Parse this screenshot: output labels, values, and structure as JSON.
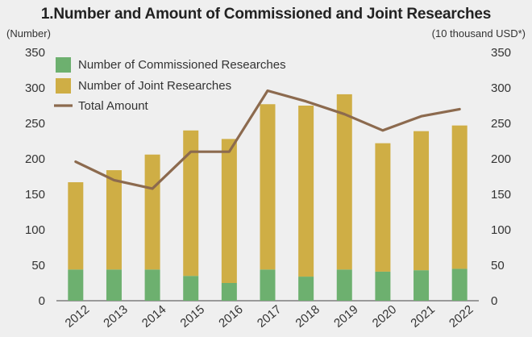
{
  "chart_data": {
    "type": "bar",
    "title": "1.Number and Amount of Commissioned and Joint Researches",
    "ylabel": "(Number)",
    "y2label": "(10 thousand USD*)",
    "ylim": [
      0,
      350
    ],
    "y2lim": [
      0,
      350
    ],
    "yticks": [
      0,
      50,
      100,
      150,
      200,
      250,
      300,
      350
    ],
    "categories": [
      "2012",
      "2013",
      "2014",
      "2015",
      "2016",
      "2017",
      "2018",
      "2019",
      "2020",
      "2021",
      "2022"
    ],
    "stacked": true,
    "grid": false,
    "legend_position": "top-left",
    "series": [
      {
        "name": "Number of Commissioned Researches",
        "kind": "bar",
        "color": "#6db06f",
        "values": [
          44,
          44,
          44,
          35,
          25,
          44,
          34,
          44,
          41,
          43,
          45
        ]
      },
      {
        "name": "Number of Joint Researches",
        "kind": "bar",
        "color": "#cfae45",
        "values": [
          123,
          140,
          162,
          205,
          203,
          233,
          241,
          247,
          181,
          196,
          202
        ]
      },
      {
        "name": "Total Amount",
        "kind": "line",
        "axis": "right",
        "color": "#8c6a4e",
        "values": [
          196,
          170,
          158,
          210,
          210,
          296,
          281,
          263,
          240,
          260,
          270
        ]
      }
    ]
  }
}
